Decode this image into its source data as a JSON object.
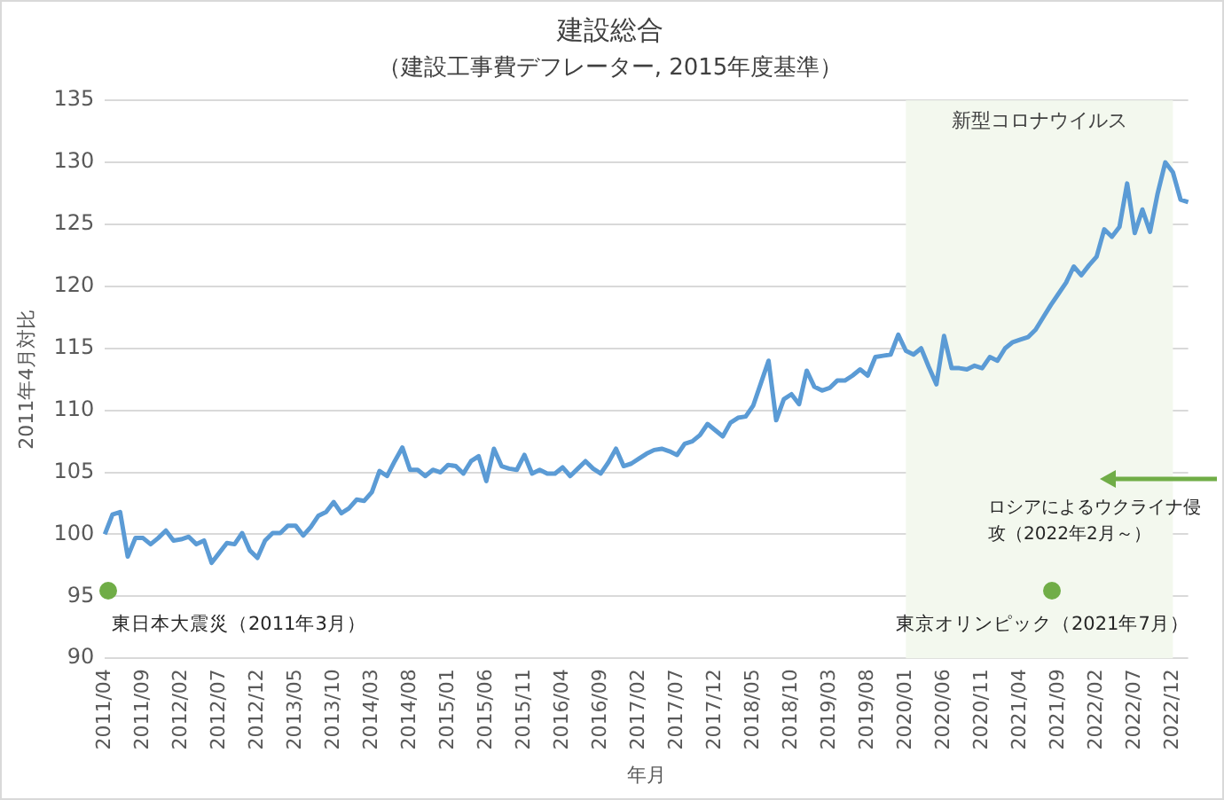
{
  "chart_data": {
    "type": "line",
    "title": "建設総合",
    "subtitle": "（建設工事費デフレーター, 2015年度基準）",
    "xlabel": "年月",
    "ylabel": "2011年4月対比",
    "categories": [
      "2011/04",
      null,
      null,
      null,
      null,
      "2011/09",
      null,
      null,
      null,
      null,
      "2012/02",
      null,
      null,
      null,
      null,
      "2012/07",
      null,
      null,
      null,
      null,
      "2012/12",
      null,
      null,
      null,
      null,
      "2013/05",
      null,
      null,
      null,
      null,
      "2013/10",
      null,
      null,
      null,
      null,
      "2014/03",
      null,
      null,
      null,
      null,
      "2014/08",
      null,
      null,
      null,
      null,
      "2015/01",
      null,
      null,
      null,
      null,
      "2015/06",
      null,
      null,
      null,
      null,
      "2015/11",
      null,
      null,
      null,
      null,
      "2016/04",
      null,
      null,
      null,
      null,
      "2016/09",
      null,
      null,
      null,
      null,
      "2017/02",
      null,
      null,
      null,
      null,
      "2017/07",
      null,
      null,
      null,
      null,
      "2017/12",
      null,
      null,
      null,
      null,
      "2018/05",
      null,
      null,
      null,
      null,
      "2018/10",
      null,
      null,
      null,
      null,
      "2019/03",
      null,
      null,
      null,
      null,
      "2019/08",
      null,
      null,
      null,
      null,
      "2020/01",
      null,
      null,
      null,
      null,
      "2020/06",
      null,
      null,
      null,
      null,
      "2020/11",
      null,
      null,
      null,
      null,
      "2021/04",
      null,
      null,
      null,
      null,
      "2021/09",
      null,
      null,
      null,
      null,
      "2022/02",
      null,
      null,
      null,
      null,
      "2022/07",
      null,
      null,
      null,
      null,
      "2022/12",
      null,
      null
    ],
    "values": [
      100.0,
      101.6,
      101.8,
      98.2,
      99.7,
      99.7,
      99.2,
      99.7,
      100.3,
      99.5,
      99.6,
      99.8,
      99.2,
      99.5,
      97.7,
      98.5,
      99.3,
      99.2,
      100.1,
      98.7,
      98.1,
      99.5,
      100.1,
      100.1,
      100.7,
      100.7,
      99.9,
      100.6,
      101.5,
      101.8,
      102.6,
      101.7,
      102.1,
      102.8,
      102.7,
      103.4,
      105.1,
      104.7,
      105.9,
      107.0,
      105.2,
      105.2,
      104.7,
      105.2,
      105.0,
      105.6,
      105.5,
      104.9,
      105.9,
      106.3,
      104.3,
      106.9,
      105.5,
      105.3,
      105.2,
      106.4,
      104.9,
      105.2,
      104.9,
      104.9,
      105.4,
      104.7,
      105.3,
      105.9,
      105.3,
      104.9,
      105.8,
      106.9,
      105.5,
      105.7,
      106.1,
      106.5,
      106.8,
      106.9,
      106.7,
      106.4,
      107.3,
      107.5,
      108.0,
      108.9,
      108.4,
      107.9,
      109.0,
      109.4,
      109.5,
      110.4,
      112.2,
      114.0,
      109.2,
      110.9,
      111.3,
      110.5,
      113.2,
      111.9,
      111.6,
      111.8,
      112.4,
      112.4,
      112.8,
      113.3,
      112.8,
      114.3,
      114.4,
      114.5,
      116.1,
      114.8,
      114.5,
      115.0,
      113.5,
      112.1,
      116.0,
      113.4,
      113.4,
      113.3,
      113.6,
      113.4,
      114.3,
      114.0,
      115.0,
      115.5,
      115.7,
      115.9,
      116.5,
      117.5,
      118.5,
      119.4,
      120.3,
      121.6,
      120.9,
      121.7,
      122.4,
      124.6,
      124.0,
      124.8,
      128.3,
      124.3,
      126.2,
      124.4,
      127.5,
      130.0,
      129.2,
      127.0,
      126.8
    ],
    "color": "#5b9bd5",
    "ylim": [
      90,
      135
    ],
    "yticks": [
      90,
      95,
      100,
      105,
      110,
      115,
      120,
      125,
      130,
      135
    ],
    "grid": "y",
    "bands": [
      {
        "axis": "x",
        "from": "2020/01",
        "to": "2022/12",
        "label": "新型コロナウイルス",
        "color": "#f3f8ee"
      }
    ],
    "annotations": [
      "東日本大震災（2011年3月）",
      "東京オリンピック（2021年7月）",
      "ロシアによるウクライナ侵攻（2022年2月～）"
    ]
  }
}
